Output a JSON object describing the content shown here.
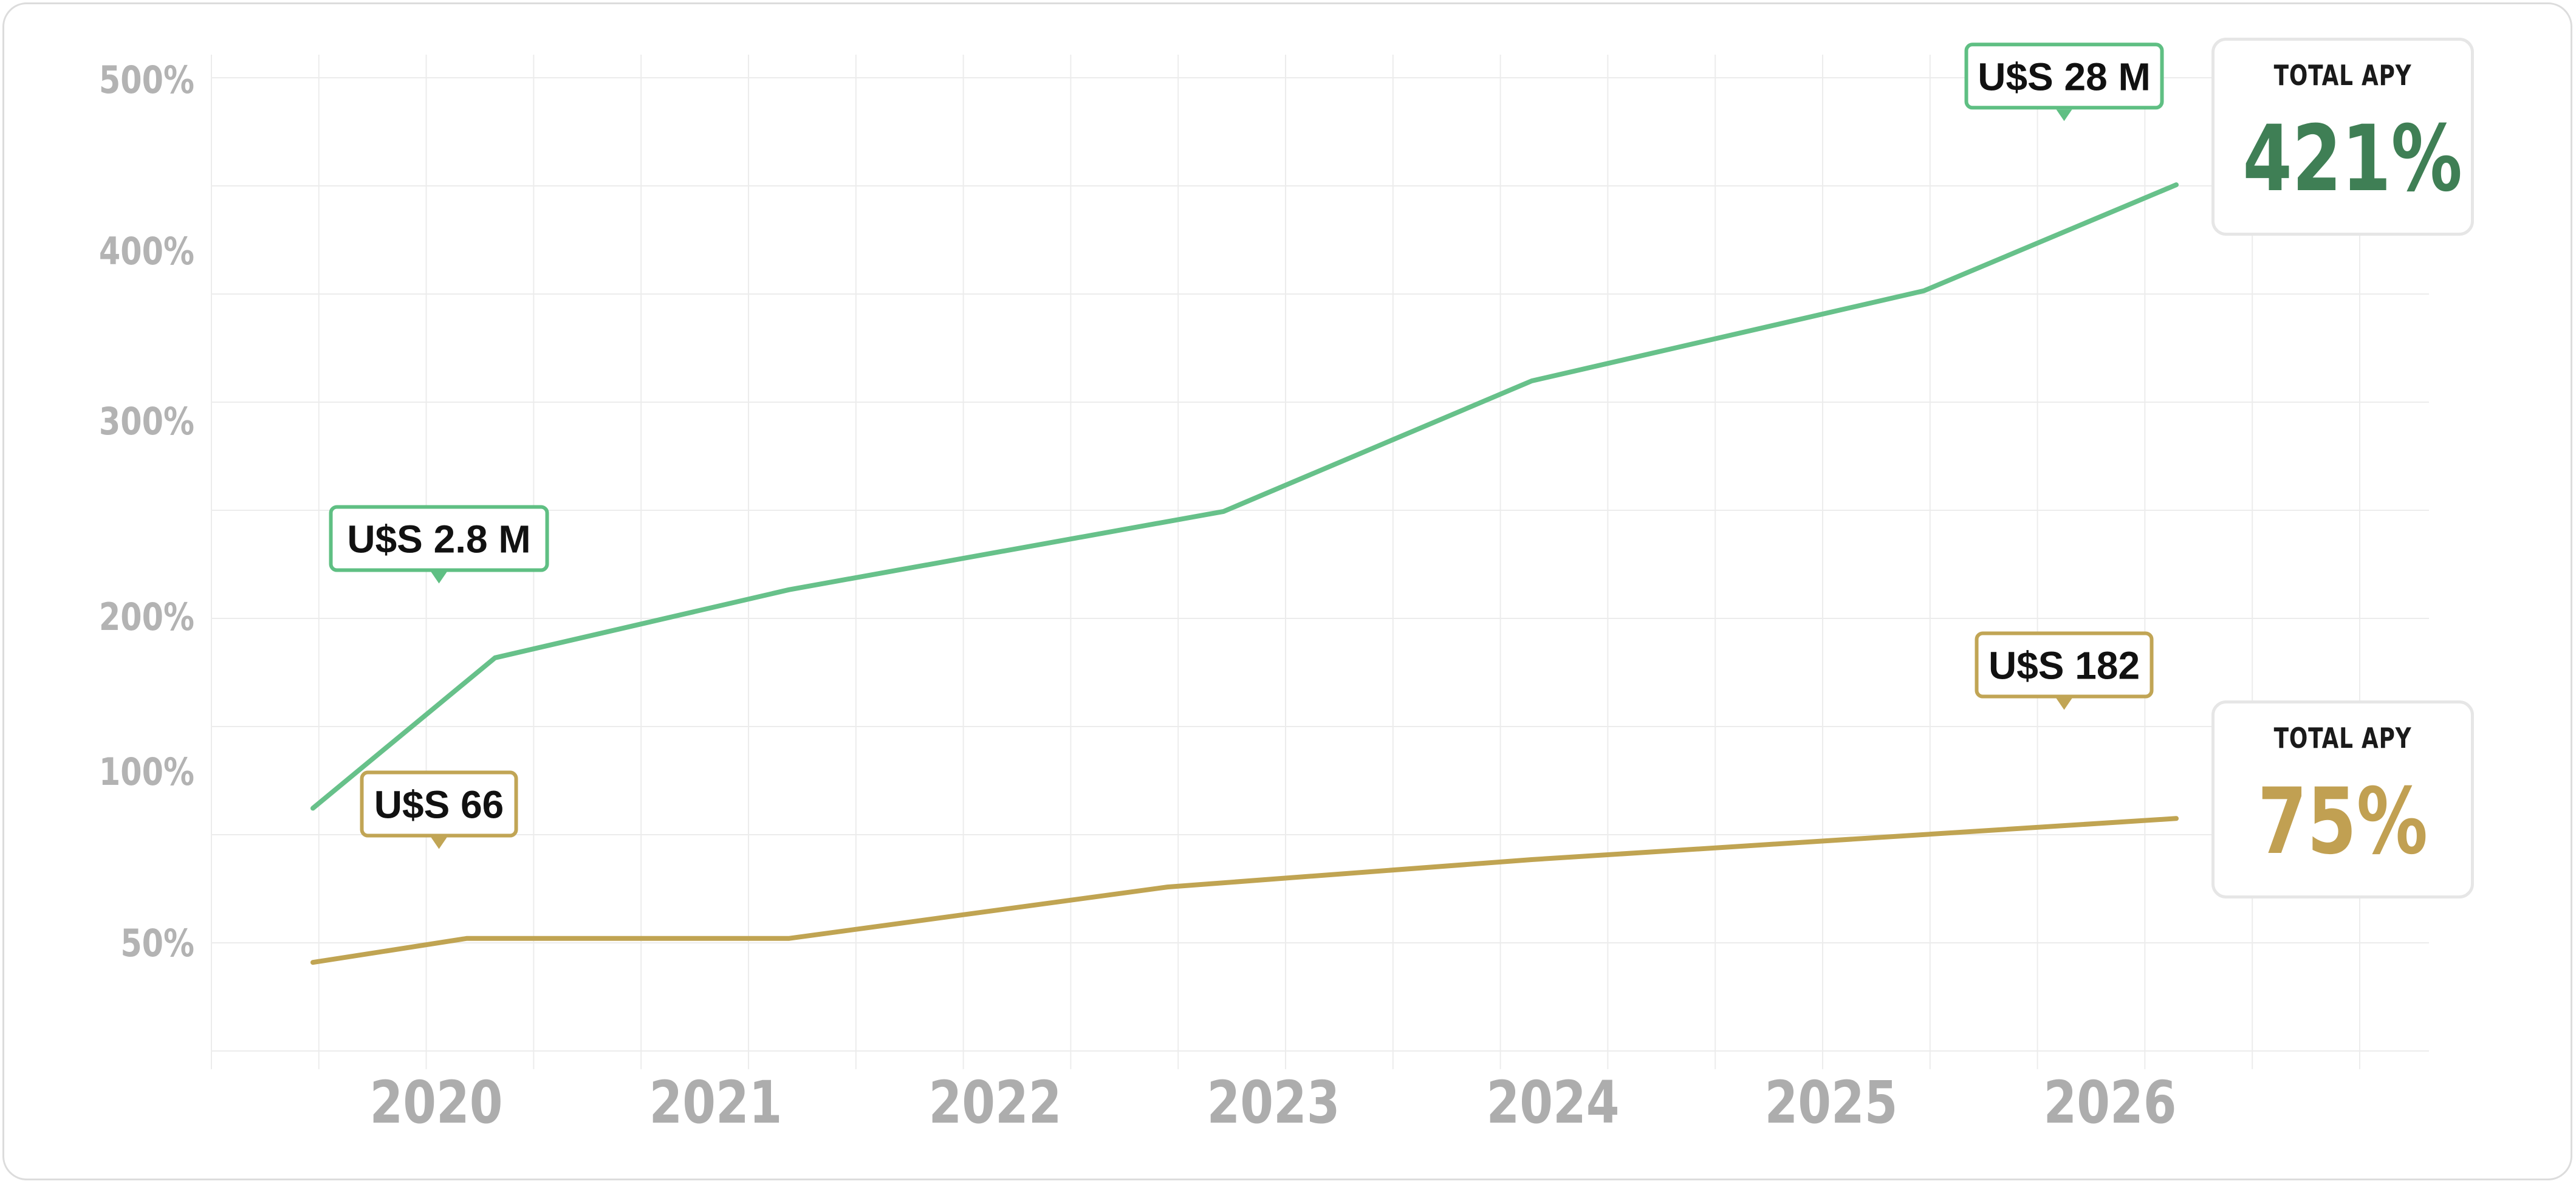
{
  "chart_data": {
    "type": "line",
    "title": "",
    "xlabel": "",
    "ylabel": "",
    "grid": true,
    "y_scale": "custom",
    "y_ticks": [
      "50%",
      "100%",
      "200%",
      "300%",
      "400%",
      "500%"
    ],
    "x_ticks": [
      "2020",
      "2021",
      "2022",
      "2023",
      "2024",
      "2025",
      "2026"
    ],
    "xlim": [
      2019.55,
      2026.95
    ],
    "series": [
      {
        "color": "#67c18a",
        "x": [
          2019.6,
          2020.25,
          2021.3,
          2022.85,
          2023.95,
          2025.35,
          2026.25
        ],
        "y": [
          90,
          175,
          215,
          255,
          325,
          378,
          440
        ]
      },
      {
        "color": "#c0a452",
        "x": [
          2019.6,
          2020.15,
          2021.3,
          2022.65,
          2023.95,
          2026.25
        ],
        "y": [
          45,
          52,
          52,
          67,
          75,
          87
        ]
      }
    ],
    "callouts": [
      {
        "text": "U$S 2.8 M",
        "series": 0,
        "x": 2020.05,
        "y": 225,
        "border": "#5fbf83"
      },
      {
        "text": "U$S 28 M",
        "series": 0,
        "x": 2025.85,
        "y": 485,
        "border": "#5fbf83"
      },
      {
        "text": "U$S 66",
        "series": 1,
        "x": 2020.05,
        "y": 82,
        "border": "#c1a555"
      },
      {
        "text": "U$S 182",
        "series": 1,
        "x": 2025.85,
        "y": 150,
        "border": "#c1a555"
      }
    ]
  },
  "summary": [
    {
      "label": "TOTAL APY",
      "value": "421%",
      "color": "#3f7f55"
    },
    {
      "label": "TOTAL APY",
      "value": "75%",
      "color": "#c1a052"
    }
  ]
}
